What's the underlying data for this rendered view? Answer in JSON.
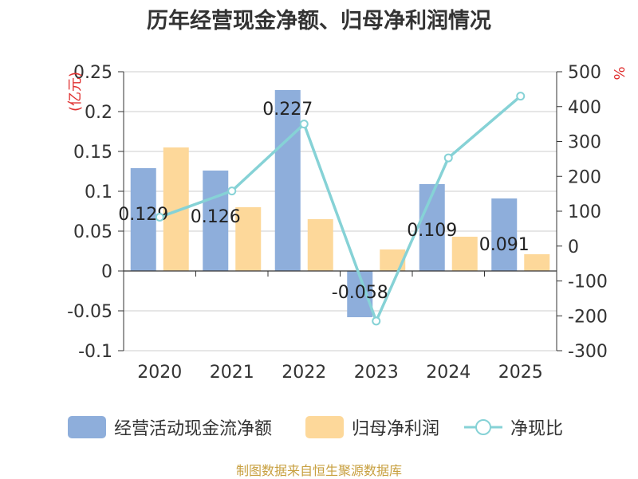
{
  "title": "历年经营现金净额、归母净利润情况",
  "source": "制图数据来自恒生聚源数据库",
  "colors": {
    "bar1": "#8eaedb",
    "bar2": "#fdd89a",
    "line": "#86d2d6",
    "grid": "#cccccc",
    "axis": "#333333",
    "unit": "#e03030"
  },
  "chart_data": {
    "type": "bar",
    "categories": [
      "2020",
      "2021",
      "2022",
      "2023",
      "2024",
      "2025"
    ],
    "series": [
      {
        "name": "经营活动现金流净额",
        "type": "bar",
        "axis": "left",
        "values": [
          0.129,
          0.126,
          0.227,
          -0.058,
          0.109,
          0.091
        ]
      },
      {
        "name": "归母净利润",
        "type": "bar",
        "axis": "left",
        "values": [
          0.155,
          0.08,
          0.065,
          0.027,
          0.043,
          0.021
        ]
      },
      {
        "name": "净现比",
        "type": "line",
        "axis": "right",
        "values": [
          83,
          158,
          350,
          -215,
          253,
          430
        ]
      }
    ],
    "data_labels": [
      "0.129",
      "0.126",
      "0.227",
      "-0.058",
      "0.109",
      "0.091"
    ],
    "left_axis": {
      "unit": "(亿元)",
      "min": -0.1,
      "max": 0.25,
      "ticks": [
        "0.25",
        "0.2",
        "0.15",
        "0.1",
        "0.05",
        "0",
        "-0.05",
        "-0.1"
      ]
    },
    "right_axis": {
      "unit": "%",
      "min": -300,
      "max": 500,
      "ticks": [
        "500",
        "400",
        "300",
        "200",
        "100",
        "0",
        "-100",
        "-200",
        "-300"
      ]
    },
    "legend": [
      "经营活动现金流净额",
      "归母净利润",
      "净现比"
    ],
    "legend_position": "bottom"
  }
}
